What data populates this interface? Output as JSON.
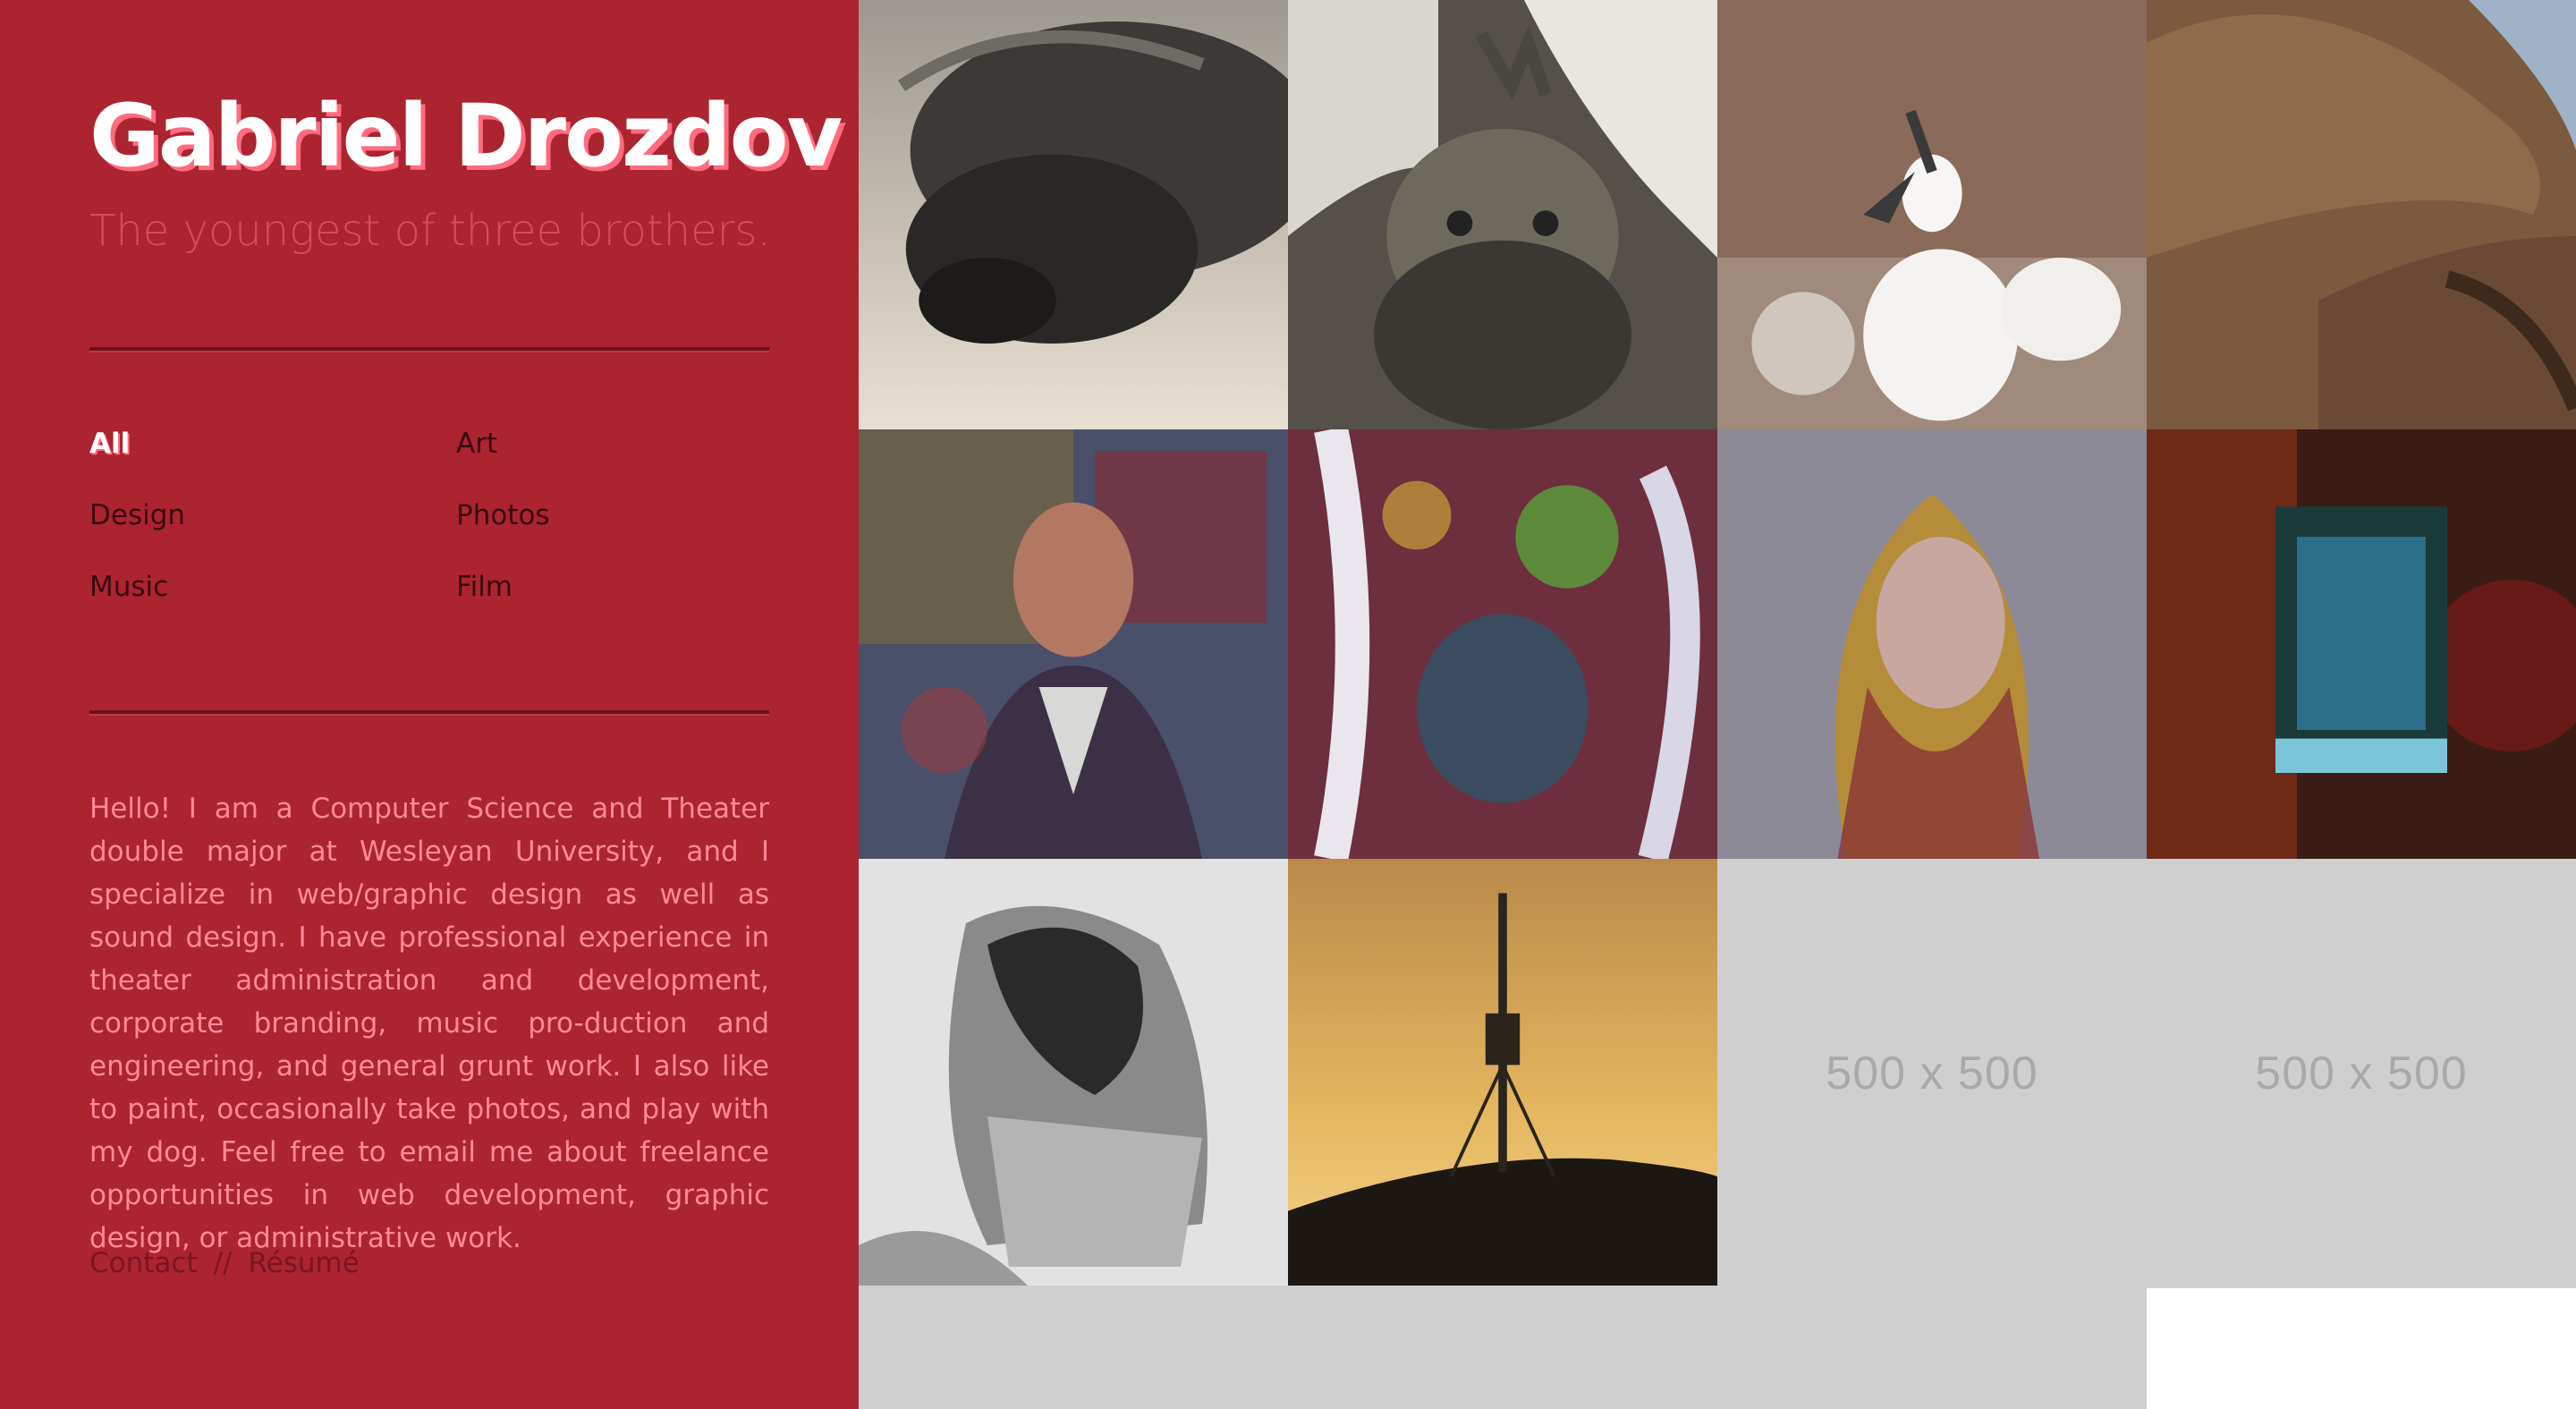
{
  "profile": {
    "name": "Gabriel Drozdov",
    "tagline": "The youngest of three brothers."
  },
  "filters": [
    {
      "label": "All",
      "active": true
    },
    {
      "label": "Art",
      "active": false
    },
    {
      "label": "Design",
      "active": false
    },
    {
      "label": "Photos",
      "active": false
    },
    {
      "label": "Music",
      "active": false
    },
    {
      "label": "Film",
      "active": false
    }
  ],
  "bio": "Hello! I am a Computer Science and Theater double major at Wesleyan University, and I specialize in web/graphic design as well as sound design. I have professional experience in theater administration and development, corporate branding, music pro-duction and engineering, and general grunt work. I also like to paint, occasionally take photos, and play with my dog. Feel free to email me about freelance opportunities in web development, graphic design, or administrative work.",
  "links": {
    "contact": "Contact",
    "separator": "//",
    "resume": "Résumé"
  },
  "gallery": {
    "tiles": [
      {
        "name": "photo-sea-lion-pup"
      },
      {
        "name": "photo-marine-iguana"
      },
      {
        "name": "photo-booby-chick"
      },
      {
        "name": "photo-sea-lion"
      },
      {
        "name": "painting-portrait-man"
      },
      {
        "name": "painting-portrait-abstract"
      },
      {
        "name": "painting-portrait-woman"
      },
      {
        "name": "painting-window-blue"
      },
      {
        "name": "drawing-crumpled-head"
      },
      {
        "name": "photo-tower-sunset"
      }
    ],
    "placeholders": [
      "500 x 500",
      "500 x 500"
    ]
  },
  "colors": {
    "sidebar": "#ab2430",
    "accent": "#ff6b7f",
    "placeholder": "#cfcfcf"
  }
}
